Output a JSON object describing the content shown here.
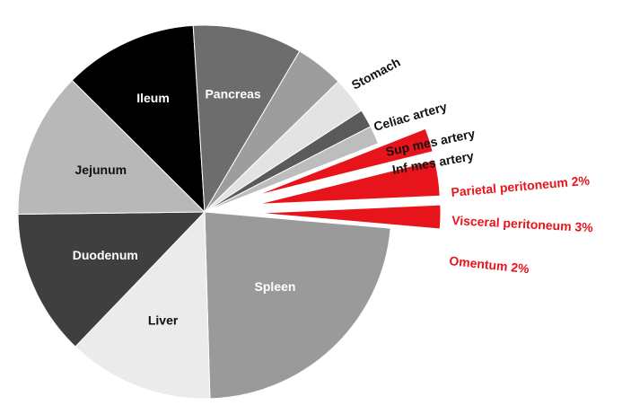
{
  "chart_data": {
    "type": "pie",
    "slices": [
      {
        "label": "Spleen",
        "value": 22,
        "color": "#9a9a9a",
        "label_color": "#ffffff",
        "value_label": ""
      },
      {
        "label": "Liver",
        "value": 12,
        "color": "#ebebeb",
        "label_color": "#111111",
        "value_label": ""
      },
      {
        "label": "Duodenum",
        "value": 12,
        "color": "#3f3f3f",
        "label_color": "#ffffff",
        "value_label": ""
      },
      {
        "label": "Jejunum",
        "value": 12,
        "color": "#b8b8b8",
        "label_color": "#111111",
        "value_label": ""
      },
      {
        "label": "Ileum",
        "value": 11,
        "color": "#000000",
        "label_color": "#ffffff",
        "value_label": ""
      },
      {
        "label": "Pancreas",
        "value": 9,
        "color": "#6d6d6d",
        "label_color": "#ffffff",
        "value_label": ""
      },
      {
        "label": "Stomach",
        "value": 4,
        "color": "#9d9d9d",
        "label_color": "#111111",
        "value_label": ""
      },
      {
        "label": "Celiac artery",
        "value": 3,
        "color": "#e3e3e3",
        "label_color": "#111111",
        "value_label": ""
      },
      {
        "label": "Sup mes artery",
        "value": 1.5,
        "color": "#5a5a5a",
        "label_color": "#111111",
        "value_label": ""
      },
      {
        "label": "Inf mes artery",
        "value": 1.5,
        "color": "#bdbdbd",
        "label_color": "#111111",
        "value_label": ""
      },
      {
        "label": "Parietal peritoneum",
        "value": 2,
        "color": "#e8141b",
        "label_color": "#e8141b",
        "value_label": "Parietal peritoneum 2%",
        "exploded": true
      },
      {
        "label": "Visceral peritoneum",
        "value": 3,
        "color": "#e8141b",
        "label_color": "#e8141b",
        "value_label": "Visceral peritoneum 3%",
        "exploded": true
      },
      {
        "label": "Omentum",
        "value": 2,
        "color": "#e8141b",
        "label_color": "#e8141b",
        "value_label": "Omentum 2%",
        "exploded": true
      }
    ]
  }
}
